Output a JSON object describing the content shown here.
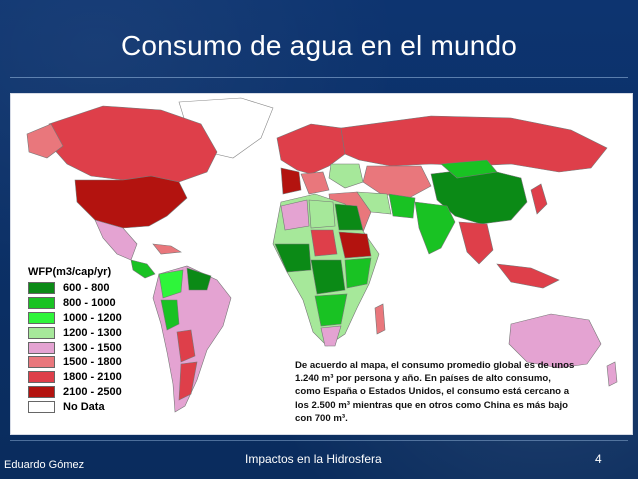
{
  "slide": {
    "title": "Consumo de agua en el mundo",
    "author": "Eduardo Gómez",
    "section": "Impactos en la Hidrosfera",
    "page_number": "4"
  },
  "map": {
    "legend_title": "WFP(m3/cap/yr)",
    "legend": [
      {
        "label": "600 - 800",
        "color": "#0b8a16"
      },
      {
        "label": "800 - 1000",
        "color": "#19c223"
      },
      {
        "label": "1000 - 1200",
        "color": "#2ef53a"
      },
      {
        "label": "1200 - 1300",
        "color": "#a6e89a"
      },
      {
        "label": "1300 - 1500",
        "color": "#e4a3d2"
      },
      {
        "label": "1500 - 1800",
        "color": "#e9777c"
      },
      {
        "label": "1800 - 2100",
        "color": "#de3f4a"
      },
      {
        "label": "2100 - 2500",
        "color": "#b3130f"
      },
      {
        "label": "No Data",
        "color": "#ffffff"
      }
    ],
    "note": "De acuerdo al mapa, el consumo promedio global es de unos 1.240 m³ por persona y año. En países de alto consumo, como España o Estados Unidos, el consumo está cercano a los 2.500 m³ mientras que en otros como China es más bajo con 700 m³."
  }
}
